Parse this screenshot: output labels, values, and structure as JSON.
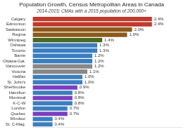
{
  "chart_data": {
    "type": "bar",
    "orientation": "horizontal",
    "title": "Population Growth, Census Metropolitan Areas in Canada",
    "subtitle": "2014-2015; CMAs with a 2015 population of 200,000+",
    "categories": [
      "St. C-Mag.",
      "Windsor",
      "Quebec",
      "London",
      "K-C-W",
      "Montreal",
      "Hamilton",
      "Sherbrooke",
      "St. John's",
      "Halifax",
      "Victoria",
      "Vancouver",
      "Ottawa-Gat.",
      "Barrie",
      "Toronto",
      "Oshawa",
      "Winnipeg",
      "Regina",
      "Saskatoon",
      "Edmonton",
      "Calgary"
    ],
    "values": [
      0.4,
      0.4,
      0.7,
      0.7,
      0.8,
      0.8,
      0.8,
      0.9,
      1.0,
      1.0,
      1.1,
      1.2,
      1.2,
      1.2,
      1.3,
      1.3,
      1.4,
      1.9,
      2.0,
      2.4,
      2.4
    ],
    "value_labels": [
      "0.4%",
      "0.4%",
      "0.7%",
      "0.7%",
      "0.8%",
      "0.8%",
      "0.8%",
      "0.9%",
      "1.0%",
      "1.0%",
      "1.1%",
      "1.2%",
      "1.2%",
      "1.2%",
      "1.3%",
      "1.3%",
      "1.4%",
      "1.9%",
      "2.0%",
      "2.4%",
      "2.4%"
    ],
    "colors": [
      "#3a7ebf",
      "#3a7ebf",
      "#7b3fbe",
      "#3a7ebf",
      "#3a7ebf",
      "#7b3fbe",
      "#3a7ebf",
      "#7b3fbe",
      "#3a7ebf",
      "#3a7ebf",
      "#888888",
      "#888888",
      "#3a7ebf",
      "#3a7ebf",
      "#3a7ebf",
      "#3a7ebf",
      "#4a6820",
      "#8B5A1A",
      "#8B5A1A",
      "#c0392b",
      "#c0392b"
    ],
    "xlim": [
      0,
      3.0
    ],
    "data_labels": true,
    "tick_labels": "y",
    "grid": false
  }
}
